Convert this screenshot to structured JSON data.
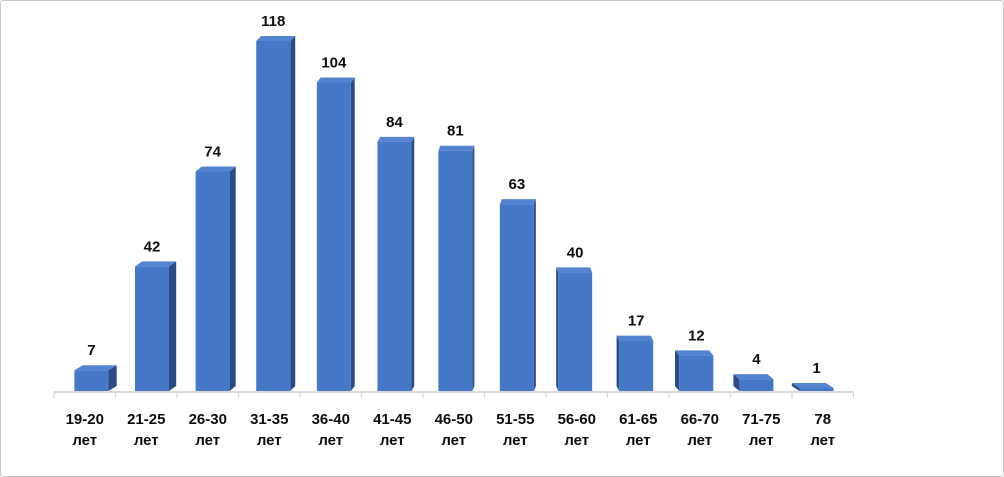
{
  "chart_data": {
    "type": "bar",
    "title": "",
    "xlabel": "",
    "ylabel": "",
    "categories": [
      "19-20",
      "21-25",
      "26-30",
      "31-35",
      "36-40",
      "41-45",
      "46-50",
      "51-55",
      "56-60",
      "61-65",
      "66-70",
      "71-75",
      "78"
    ],
    "category_unit_line2": "лет",
    "values": [
      7,
      42,
      74,
      118,
      104,
      84,
      81,
      63,
      40,
      17,
      12,
      4,
      1
    ],
    "ylim": [
      0,
      118
    ],
    "grid": false,
    "legend_position": "none",
    "data_labels_shown": true,
    "bar_style": "3d-perspective",
    "colors": {
      "bar_front": "#4678C8",
      "bar_top": "#5483CF",
      "bar_side": "#2A4B85",
      "axis_line": "#D9D9D9",
      "label_text": "#0D0D0D",
      "frame_border": "#C9C9C9",
      "background": "#FFFFFF"
    }
  }
}
